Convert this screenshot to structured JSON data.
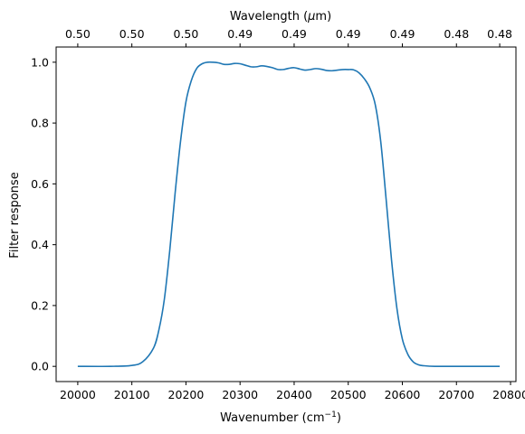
{
  "chart_data": {
    "type": "line",
    "xlabel_main": "Wavenumber (cm",
    "xlabel_sup": "−1",
    "xlabel_close": ")",
    "ylabel": "Filter response",
    "top_xlabel_prefix": "Wavelength (",
    "top_xlabel_mu": "μ",
    "top_xlabel_suffix": "m)",
    "xlim": [
      19960,
      20810
    ],
    "ylim": [
      -0.05,
      1.05
    ],
    "x_ticks": [
      20000,
      20100,
      20200,
      20300,
      20400,
      20500,
      20600,
      20700,
      20800
    ],
    "x_tick_labels": [
      "20000",
      "20100",
      "20200",
      "20300",
      "20400",
      "20500",
      "20600",
      "20700",
      "20800"
    ],
    "y_ticks": [
      0.0,
      0.2,
      0.4,
      0.6,
      0.8,
      1.0
    ],
    "y_tick_labels": [
      "0.0",
      "0.2",
      "0.4",
      "0.6",
      "0.8",
      "1.0"
    ],
    "top_ticks": [
      20000,
      20100,
      20200,
      20300,
      20400,
      20500,
      20600,
      20700,
      20780
    ],
    "top_tick_labels": [
      "0.50",
      "0.50",
      "0.50",
      "0.49",
      "0.49",
      "0.49",
      "0.49",
      "0.48",
      "0.48"
    ],
    "line_color": "#1f77b4",
    "series": [
      {
        "x": [
          20000,
          20060,
          20100,
          20120,
          20140,
          20150,
          20160,
          20170,
          20180,
          20190,
          20200,
          20210,
          20220,
          20230,
          20240,
          20250,
          20260,
          20270,
          20280,
          20290,
          20300,
          20310,
          20320,
          20330,
          20340,
          20350,
          20360,
          20370,
          20380,
          20390,
          20400,
          20410,
          20420,
          20430,
          20440,
          20450,
          20460,
          20470,
          20480,
          20490,
          20500,
          20510,
          20520,
          20530,
          20540,
          20550,
          20560,
          20570,
          20580,
          20590,
          20600,
          20610,
          20620,
          20630,
          20640,
          20660,
          20700,
          20780
        ],
        "y": [
          0.0,
          0.0,
          0.003,
          0.015,
          0.06,
          0.12,
          0.22,
          0.38,
          0.57,
          0.74,
          0.87,
          0.94,
          0.98,
          0.995,
          1.0,
          1.0,
          0.998,
          0.993,
          0.993,
          0.996,
          0.995,
          0.99,
          0.985,
          0.985,
          0.988,
          0.986,
          0.982,
          0.976,
          0.976,
          0.98,
          0.982,
          0.978,
          0.974,
          0.976,
          0.979,
          0.977,
          0.973,
          0.972,
          0.974,
          0.976,
          0.976,
          0.975,
          0.965,
          0.945,
          0.915,
          0.86,
          0.74,
          0.55,
          0.35,
          0.19,
          0.09,
          0.04,
          0.015,
          0.005,
          0.002,
          0.0,
          0.0,
          0.0
        ]
      }
    ]
  }
}
